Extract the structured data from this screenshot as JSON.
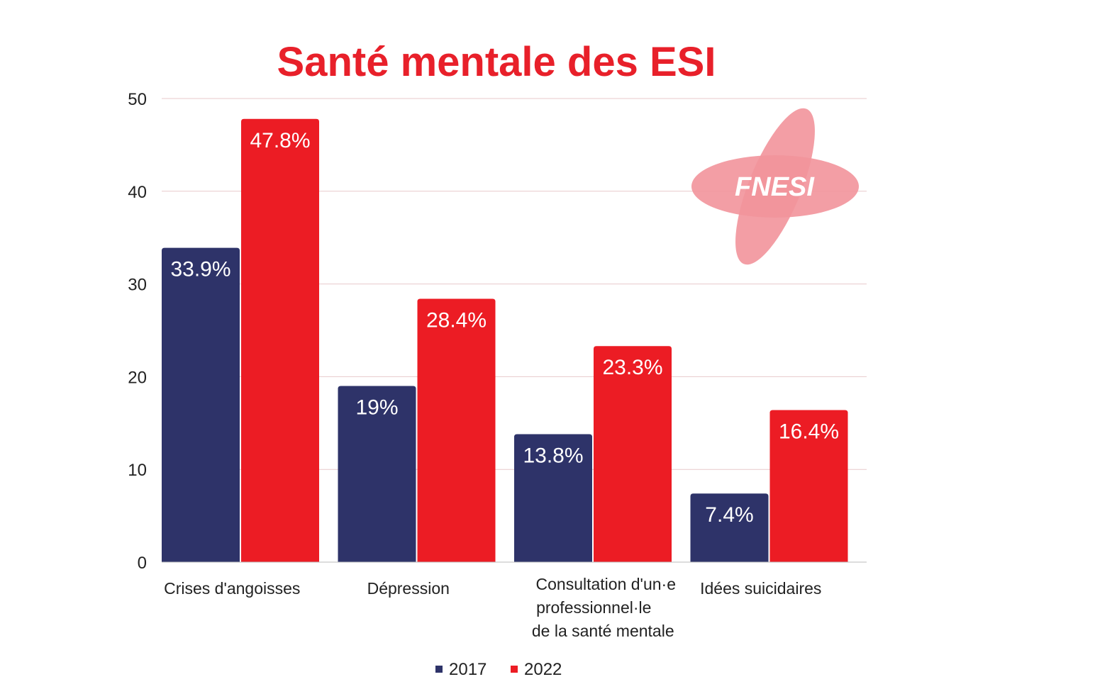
{
  "chart_data": {
    "type": "bar",
    "title": "Santé mentale des ESI",
    "title_color": "#e8202a",
    "categories": [
      [
        "Crises d'angoisses"
      ],
      [
        "Dépression"
      ],
      [
        "Consultation d'un·e",
        "professionnel·le",
        "de la santé mentale"
      ],
      [
        "Idées suicidaires"
      ]
    ],
    "series": [
      {
        "name": "2017",
        "color": "#2e3369",
        "values": [
          33.9,
          19,
          13.8,
          7.4
        ],
        "labels": [
          "33.9%",
          "19%",
          "13.8%",
          "7.4%"
        ]
      },
      {
        "name": "2022",
        "color": "#ec1c24",
        "values": [
          47.8,
          28.4,
          23.3,
          16.4
        ],
        "labels": [
          "47.8%",
          "28.4%",
          "23.3%",
          "16.4%"
        ]
      }
    ],
    "ylim": [
      0,
      50
    ],
    "yticks": [
      "0",
      "10",
      "20",
      "30",
      "40",
      "50"
    ],
    "grid": true,
    "grid_color": "#e8c9cb",
    "legend_position": "bottom-center",
    "xlabel": "",
    "ylabel": ""
  },
  "logo": {
    "text": "FNESI",
    "color": "#f2949b",
    "icon": "cross-star-logo"
  }
}
